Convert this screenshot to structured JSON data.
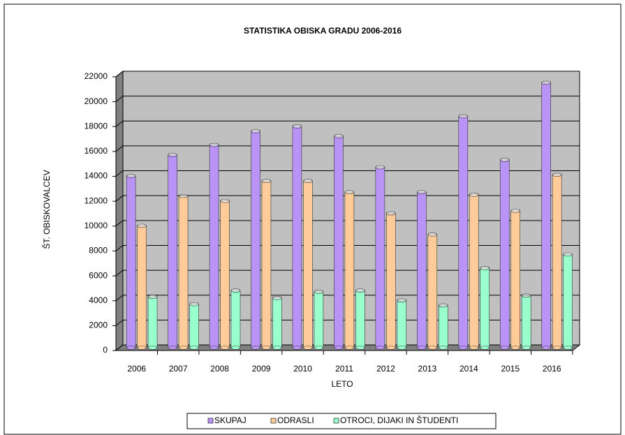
{
  "chart_data": {
    "type": "bar",
    "title": "STATISTIKA OBISKA GRADU  2006-2016",
    "x_label": "LETO",
    "y_label": "ŠT. OBISKOVALCEV",
    "categories": [
      "2006",
      "2007",
      "2008",
      "2009",
      "2010",
      "2011",
      "2012",
      "2013",
      "2014",
      "2015",
      "2016"
    ],
    "series": [
      {
        "name": "SKUPAJ",
        "color": "#b993f5",
        "values": [
          13800,
          15500,
          16300,
          17400,
          17800,
          17000,
          14500,
          12500,
          18600,
          15100,
          21300
        ]
      },
      {
        "name": "ODRASLI",
        "color": "#ffcc99",
        "values": [
          9800,
          12200,
          11800,
          13400,
          13400,
          12500,
          10800,
          9100,
          12300,
          11000,
          13900
        ]
      },
      {
        "name": "OTROCI, DIJAKI IN ŠTUDENTI",
        "color": "#99ffcc",
        "values": [
          4100,
          3500,
          4600,
          4000,
          4500,
          4600,
          3800,
          3400,
          6400,
          4200,
          7500
        ]
      }
    ],
    "ylim": [
      0,
      22000
    ],
    "yticks": [
      0,
      2000,
      4000,
      6000,
      8000,
      10000,
      12000,
      14000,
      16000,
      18000,
      20000,
      22000
    ],
    "grid": true,
    "legend": "bottom"
  }
}
